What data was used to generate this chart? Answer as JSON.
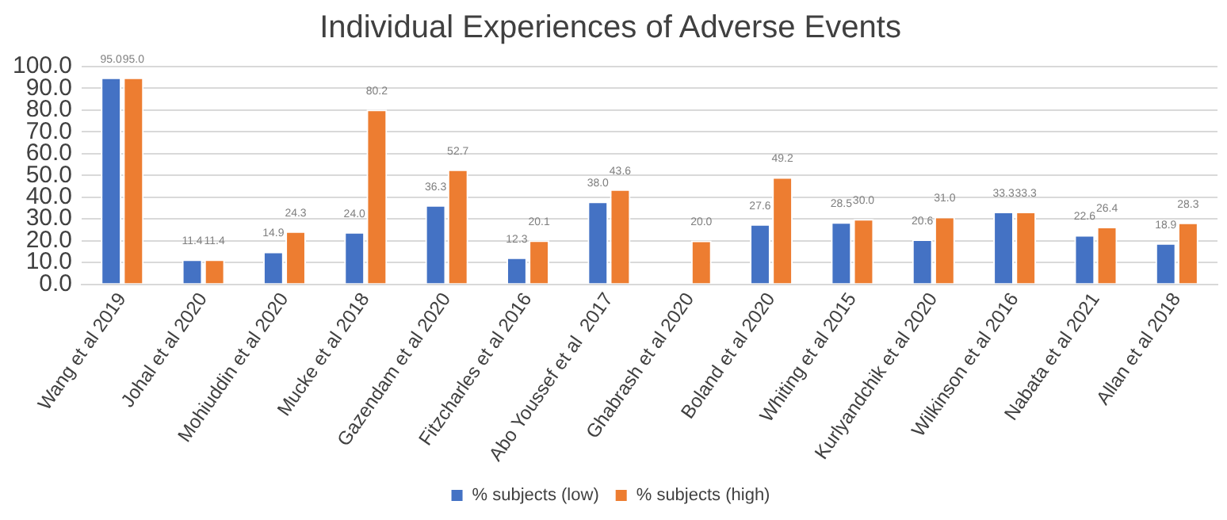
{
  "chart_data": {
    "type": "bar",
    "title": "Individual Experiences of Adverse Events",
    "categories": [
      "Wang et al 2019",
      "Johal et al 2020",
      "Mohiuddin et al 2020",
      "Mucke et al 2018",
      "Gazendam et al 2020",
      "Fitzcharles et al 2016",
      "Abo Youssef et al  2017",
      "Ghabrash et al 2020",
      "Boland et al 2020",
      "Whiting et al 2015",
      "Kurlyandchik et al 2020",
      "Wilkinson et al 2016",
      "Nabata et al 2021",
      "Allan et al 2018"
    ],
    "series": [
      {
        "name": "% subjects (low)",
        "color": "#4472c4",
        "values": [
          95.0,
          11.4,
          14.9,
          24.0,
          36.3,
          12.3,
          38.0,
          null,
          27.6,
          28.5,
          20.6,
          33.3,
          22.6,
          18.9
        ],
        "value_labels": [
          "95.0",
          "11.4",
          "14.9",
          "24.0",
          "36.3",
          "12.3",
          "38.0",
          null,
          "27.6",
          "28.5",
          "20.6",
          "33.3",
          "22.6",
          "18.9"
        ]
      },
      {
        "name": "% subjects (high)",
        "color": "#ed7d31",
        "values": [
          95.0,
          11.4,
          24.3,
          80.2,
          52.7,
          20.1,
          43.6,
          20.0,
          49.2,
          30.0,
          31.0,
          33.3,
          26.4,
          28.3
        ],
        "value_labels": [
          "95.0",
          "11.4",
          "24.3",
          "80.2",
          "52.7",
          "20.1",
          "43.6",
          "20.0",
          "49.2",
          "30.0",
          "31.0",
          "33.3",
          "26.4",
          "28.3"
        ]
      }
    ],
    "ylim": [
      0,
      100
    ],
    "yticks": [
      {
        "value": 0,
        "label": "0.0"
      },
      {
        "value": 10,
        "label": "10.0"
      },
      {
        "value": 20,
        "label": "20.0"
      },
      {
        "value": 30,
        "label": "30.0"
      },
      {
        "value": 40,
        "label": "40.0"
      },
      {
        "value": 50,
        "label": "50.0"
      },
      {
        "value": 60,
        "label": "60.0"
      },
      {
        "value": 70,
        "label": "70.0"
      },
      {
        "value": 80,
        "label": "80.0"
      },
      {
        "value": 90,
        "label": "90.0"
      },
      {
        "value": 100,
        "label": "100.0"
      }
    ],
    "grid": "y",
    "legend": "bottom"
  }
}
